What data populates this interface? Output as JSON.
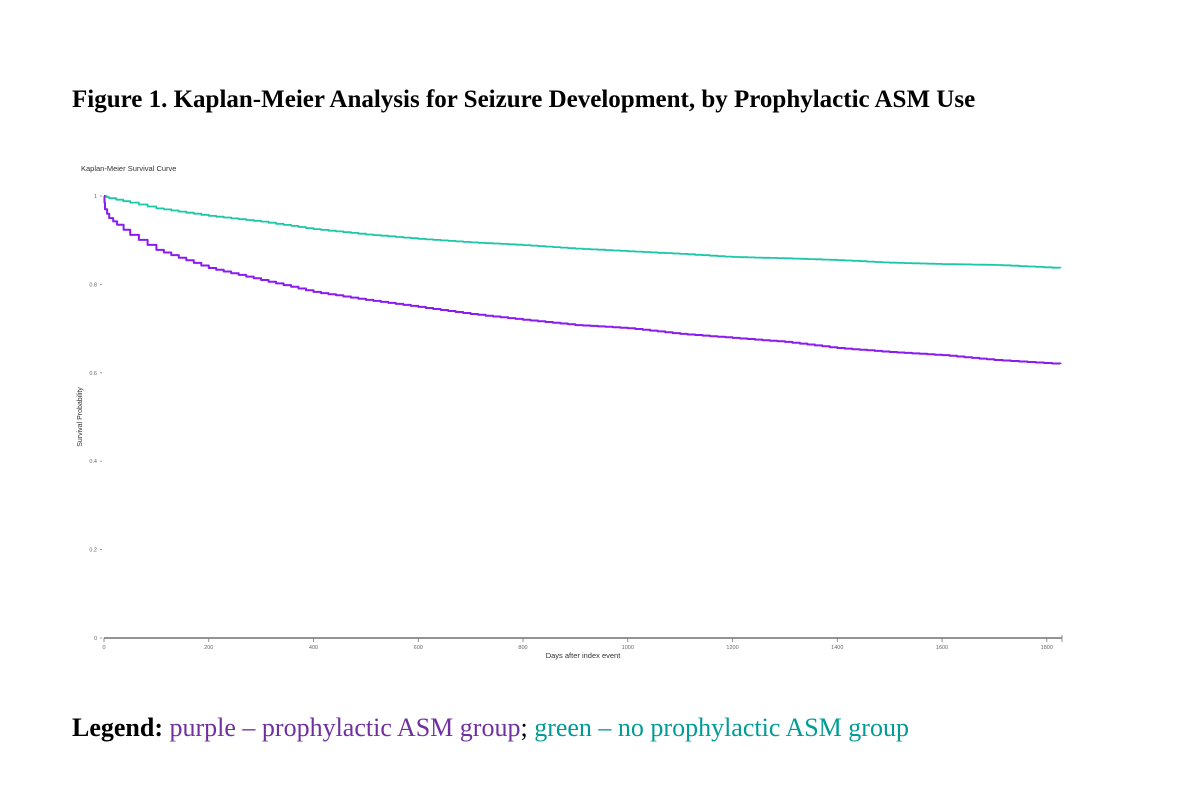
{
  "figure_title": "Figure 1. Kaplan-Meier Analysis for Seizure Development, by Prophylactic ASM Use",
  "legend": {
    "label": "Legend:",
    "purple_text": "purple – prophylactic ASM group",
    "separator": ";",
    "green_text": "green – no prophylactic ASM group",
    "purple_color": "#7030A0",
    "green_color": "#009C96"
  },
  "chart_data": {
    "type": "line",
    "title": "Kaplan-Meier Survival Curve",
    "xlabel": "Days after index event",
    "ylabel": "Survival Probability",
    "xlim": [
      0,
      1829
    ],
    "ylim": [
      0,
      1
    ],
    "xticks": [
      0,
      200,
      400,
      600,
      800,
      1000,
      1200,
      1400,
      1600,
      1800
    ],
    "yticks": [
      0,
      0.2,
      0.4,
      0.6,
      0.8,
      1
    ],
    "ytick_labels": [
      "0",
      "0.2",
      "0.4",
      "0.6",
      "0.8",
      "1"
    ],
    "grid": false,
    "series": [
      {
        "name": "no prophylactic ASM group",
        "color": "#1CC7A8",
        "x": [
          0,
          10,
          50,
          100,
          200,
          300,
          400,
          500,
          600,
          700,
          800,
          900,
          1000,
          1100,
          1200,
          1300,
          1400,
          1500,
          1600,
          1700,
          1826
        ],
        "y": [
          1.0,
          0.995,
          0.985,
          0.972,
          0.955,
          0.942,
          0.925,
          0.913,
          0.903,
          0.895,
          0.889,
          0.881,
          0.875,
          0.869,
          0.862,
          0.859,
          0.855,
          0.849,
          0.846,
          0.844,
          0.837
        ]
      },
      {
        "name": "prophylactic ASM group",
        "color": "#8A1CF0",
        "x": [
          0,
          2,
          10,
          25,
          50,
          100,
          200,
          300,
          400,
          500,
          600,
          700,
          800,
          900,
          1000,
          1100,
          1200,
          1300,
          1400,
          1500,
          1600,
          1700,
          1826
        ],
        "y": [
          1.0,
          0.97,
          0.95,
          0.935,
          0.912,
          0.878,
          0.837,
          0.81,
          0.783,
          0.765,
          0.749,
          0.733,
          0.72,
          0.708,
          0.701,
          0.688,
          0.679,
          0.67,
          0.656,
          0.647,
          0.64,
          0.629,
          0.62
        ]
      }
    ]
  }
}
